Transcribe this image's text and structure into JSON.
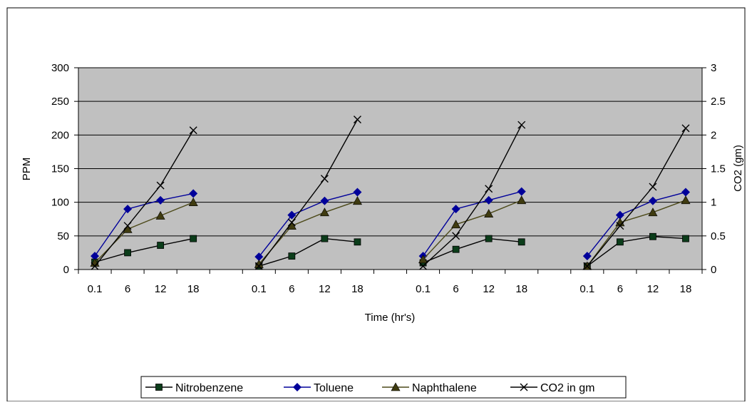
{
  "chart_data": {
    "type": "line",
    "title": "",
    "xlabel": "Time (hr's)",
    "ylabel": "PPM",
    "y2label": "CO2 (gm)",
    "ylim": [
      0,
      300
    ],
    "y2lim": [
      0,
      3
    ],
    "yticks": [
      "0",
      "50",
      "100",
      "150",
      "200",
      "250",
      "300"
    ],
    "y2ticks": [
      "0",
      "0.5",
      "1",
      "1.5",
      "2",
      "2.5",
      "3"
    ],
    "categories": [
      "0.1",
      "6",
      "12",
      "18",
      "",
      "0.1",
      "6",
      "12",
      "18",
      "",
      "0.1",
      "6",
      "12",
      "18",
      "",
      "0.1",
      "6",
      "12",
      "18"
    ],
    "grid": "horizontal",
    "plot_background": "#c0c0c0",
    "legend_position": "bottom",
    "series": [
      {
        "name": "Nitrobenzene",
        "axis": "left",
        "color": "#000000",
        "marker": "square",
        "marker_color": "#0b3d1a",
        "values": [
          11,
          25,
          36,
          46,
          null,
          5,
          20,
          46,
          41,
          null,
          10,
          30,
          46,
          41,
          null,
          5,
          41,
          49,
          46
        ]
      },
      {
        "name": "Toluene",
        "axis": "left",
        "color": "#00009a",
        "marker": "diamond",
        "marker_color": "#00009a",
        "values": [
          20,
          90,
          103,
          113,
          null,
          19,
          81,
          102,
          115,
          null,
          20,
          90,
          103,
          116,
          null,
          20,
          81,
          102,
          115
        ]
      },
      {
        "name": "Naphthalene",
        "axis": "left",
        "color": "#4d4a1a",
        "marker": "triangle",
        "marker_color": "#3f3b10",
        "values": [
          10,
          60,
          80,
          100,
          null,
          8,
          65,
          85,
          102,
          null,
          15,
          67,
          83,
          103,
          null,
          5,
          70,
          85,
          103
        ]
      },
      {
        "name": "CO2 in gm",
        "axis": "right",
        "color": "#000000",
        "marker": "x",
        "marker_color": "#000000",
        "values": [
          0.05,
          0.65,
          1.25,
          2.07,
          null,
          0.05,
          0.7,
          1.35,
          2.23,
          null,
          0.05,
          0.5,
          1.2,
          2.15,
          null,
          0.05,
          0.65,
          1.23,
          2.1
        ]
      }
    ]
  }
}
